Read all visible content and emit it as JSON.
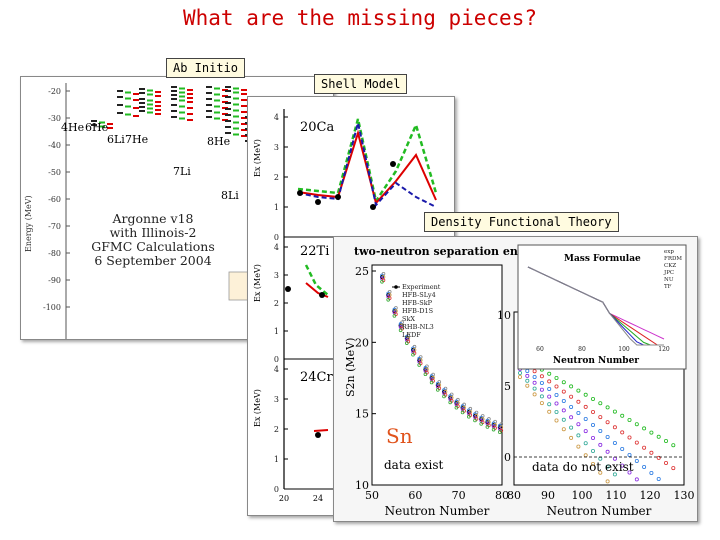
{
  "slide": {
    "title": "What are the missing pieces?",
    "labels": {
      "ab_initio": "Ab Initio",
      "shell_model": "Shell Model",
      "dft": "Density Functional Theory"
    }
  },
  "panel_ab_initio": {
    "ylabel": "Energy (MeV)",
    "yticks": [
      "-20",
      "-30",
      "-40",
      "-50",
      "-60",
      "-70",
      "-80",
      "-90",
      "-100"
    ],
    "nuclei": [
      "4He",
      "6He",
      "6Li",
      "7He",
      "7Li",
      "8He",
      "8Li"
    ],
    "caption": [
      "Argonne v18",
      "with Illinois-2",
      "GFMC Calculations",
      "6 September 2004"
    ]
  },
  "panel_shell": {
    "rows": [
      {
        "nucleus": "20Ca",
        "ylabel": "Ex (MeV)",
        "yticks": [
          "4",
          "3",
          "2",
          "1",
          "0"
        ]
      },
      {
        "nucleus": "22Ti",
        "ylabel": "Ex (MeV)",
        "yticks": [
          "4",
          "3",
          "2",
          "1",
          "0"
        ]
      },
      {
        "nucleus": "24Cr",
        "ylabel": "Ex (MeV)",
        "yticks": [
          "4",
          "3",
          "2",
          "1",
          "0"
        ]
      }
    ],
    "xticks": [
      "20",
      "24"
    ]
  },
  "panel_dft": {
    "title": "two-neutron separation energies",
    "ylabel": "S2n (MeV)",
    "xlabel": "Neutron Number",
    "element": "Sn",
    "left_note": "data exist",
    "right_note": "data do not exist",
    "legend": [
      "Experiment",
      "HFB-SLy4",
      "HFB-SkP",
      "HFB-D1S",
      "SkX",
      "RHB-NL3",
      "LEDF"
    ],
    "left_xticks": [
      "50",
      "60",
      "70",
      "80"
    ],
    "right_xticks": [
      "80",
      "90",
      "100",
      "110",
      "120",
      "130"
    ],
    "left_yticks": [
      "25",
      "20",
      "15",
      "10"
    ],
    "right_yticks": [
      "10",
      "5",
      "0"
    ],
    "inset": {
      "title": "Mass Formulae",
      "xlabel": "Neutron Number",
      "xticks": [
        "60",
        "80",
        "100",
        "120"
      ],
      "legend": [
        "exp",
        "FRDM",
        "CKZ",
        "JPC",
        "NU",
        "TF"
      ]
    }
  },
  "colors": {
    "title": "#cc0000",
    "green_dashed": "#22bb22",
    "red": "#dd0000",
    "blue_dashed": "#1a1aaa",
    "sn": "#e0531c"
  }
}
